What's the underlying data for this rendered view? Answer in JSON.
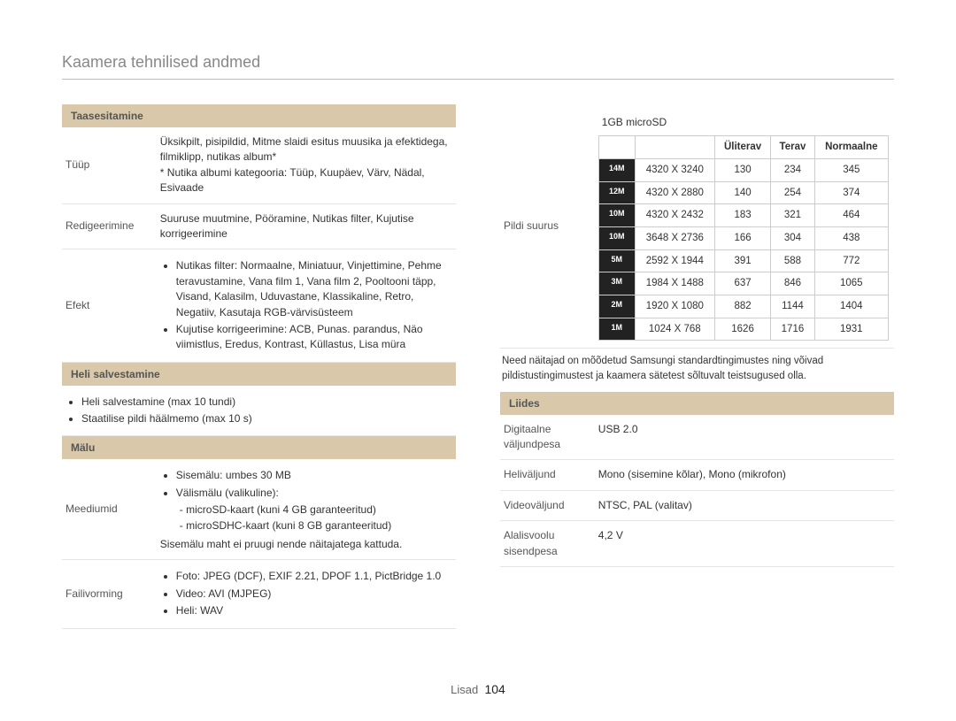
{
  "title": "Kaamera tehnilised andmed",
  "footer": {
    "label": "Lisad",
    "page": "104"
  },
  "left": {
    "playback": {
      "header": "Taasesitamine",
      "type_label": "Tüüp",
      "type_text1": "Üksikpilt, pisipildid, Mitme slaidi esitus muusika ja efektidega, filmiklipp, nutikas album*",
      "type_text2": "* Nutika albumi kategooria: Tüüp, Kuupäev, Värv, Nädal, Esivaade",
      "edit_label": "Redigeerimine",
      "edit_text": "Suuruse muutmine, Pööramine, Nutikas filter, Kujutise korrigeerimine",
      "effect_label": "Efekt",
      "effect_b1": "Nutikas filter: Normaalne, Miniatuur, Vinjettimine, Pehme teravustamine, Vana film 1, Vana film 2, Pooltooni täpp, Visand, Kalasilm, Uduvastane, Klassikaline, Retro, Negatiiv, Kasutaja RGB-värvisüsteem",
      "effect_b2": "Kujutise korrigeerimine: ACB, Punas. parandus, Näo viimistlus, Eredus, Kontrast, Küllastus, Lisa müra"
    },
    "audio": {
      "header": "Heli salvestamine",
      "b1": "Heli salvestamine (max 10 tundi)",
      "b2": "Staatilise pildi häälmemo (max 10 s)"
    },
    "memory": {
      "header": "Mälu",
      "media_label": "Meediumid",
      "media_b1": "Sisemälu: umbes 30 MB",
      "media_b2": "Välismälu (valikuline):",
      "media_s1": "- microSD-kaart (kuni 4 GB garanteeritud)",
      "media_s2": "- microSDHC-kaart (kuni 8 GB garanteeritud)",
      "media_note": "Sisemälu maht ei pruugi nende näitajatega kattuda.",
      "format_label": "Failivorming",
      "format_b1": "Foto: JPEG (DCF), EXIF 2.21, DPOF 1.1, PictBridge 1.0",
      "format_b2": "Video: AVI (MJPEG)",
      "format_b3": "Heli: WAV"
    }
  },
  "right": {
    "capacity_title": "1GB microSD",
    "size_label": "Pildi suurus",
    "headers": {
      "c1": "Üliterav",
      "c2": "Terav",
      "c3": "Normaalne"
    },
    "rows": [
      {
        "icon": "14M",
        "res": "4320 X 3240",
        "v1": "130",
        "v2": "234",
        "v3": "345"
      },
      {
        "icon": "12M",
        "res": "4320 X 2880",
        "v1": "140",
        "v2": "254",
        "v3": "374"
      },
      {
        "icon": "10M",
        "res": "4320 X 2432",
        "v1": "183",
        "v2": "321",
        "v3": "464"
      },
      {
        "icon": "10M",
        "res": "3648 X 2736",
        "v1": "166",
        "v2": "304",
        "v3": "438"
      },
      {
        "icon": "5M",
        "res": "2592 X 1944",
        "v1": "391",
        "v2": "588",
        "v3": "772"
      },
      {
        "icon": "3M",
        "res": "1984 X 1488",
        "v1": "637",
        "v2": "846",
        "v3": "1065"
      },
      {
        "icon": "2M",
        "res": "1920 X 1080",
        "v1": "882",
        "v2": "1144",
        "v3": "1404"
      },
      {
        "icon": "1M",
        "res": "1024 X 768",
        "v1": "1626",
        "v2": "1716",
        "v3": "1931"
      }
    ],
    "note": "Need näitajad on mõõdetud Samsungi standardtingimustes ning võivad pildistustingimustest ja kaamera sätetest sõltuvalt teistsugused olla.",
    "interface": {
      "header": "Liides",
      "r1l": "Digitaalne väljundpesa",
      "r1v": "USB 2.0",
      "r2l": "Heliväljund",
      "r2v": "Mono (sisemine kõlar), Mono (mikrofon)",
      "r3l": "Videoväljund",
      "r3v": "NTSC, PAL (valitav)",
      "r4l": "Alalisvoolu sisendpesa",
      "r4v": "4,2 V"
    }
  }
}
